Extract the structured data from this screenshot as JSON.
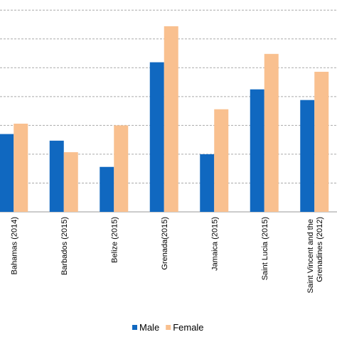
{
  "chart_data": {
    "type": "bar",
    "categories": [
      "Bahamas (2014)",
      "Barbados (2015)",
      "Belize (2015)",
      "Grenada(2015)",
      "Jamaica (2015)",
      "Saint Lucia (2015)",
      "Saint Vincent and the Grenadines (2012)"
    ],
    "series": [
      {
        "name": "Male",
        "color": "#1068c0",
        "values": [
          2.7,
          2.47,
          1.56,
          5.19,
          2.0,
          4.25,
          3.88
        ]
      },
      {
        "name": "Female",
        "color": "#f9c08f",
        "values": [
          3.06,
          2.07,
          3.0,
          6.44,
          3.56,
          5.48,
          4.86
        ]
      }
    ],
    "ylim": [
      0,
      7.35
    ],
    "yticks": [
      0,
      1,
      2,
      3,
      4,
      5,
      6,
      7
    ],
    "grid": true,
    "legend": "bottom"
  }
}
